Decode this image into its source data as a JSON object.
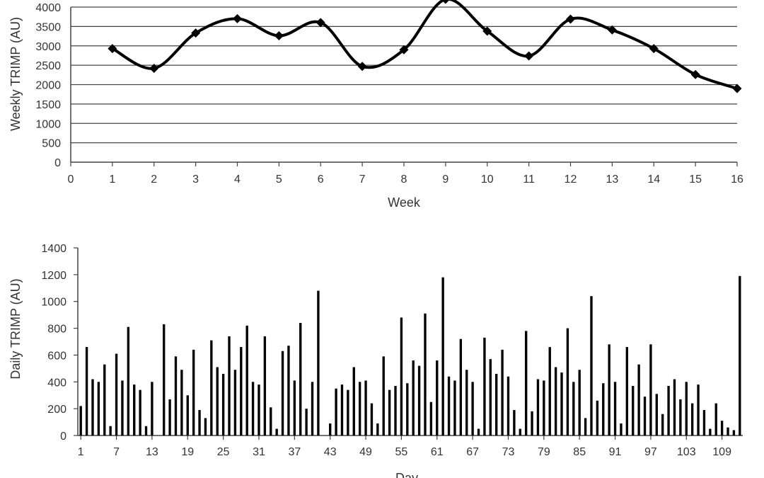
{
  "chart_data": [
    {
      "type": "line",
      "xlabel": "Week",
      "ylabel": "Weekly TRIMP (AU)",
      "xlim": [
        0,
        16
      ],
      "ylim": [
        0,
        4000
      ],
      "x_ticks": [
        "0",
        "1",
        "2",
        "3",
        "4",
        "5",
        "6",
        "7",
        "8",
        "9",
        "10",
        "11",
        "12",
        "13",
        "14",
        "15",
        "16"
      ],
      "y_ticks": [
        "0",
        "500",
        "1000",
        "1500",
        "2000",
        "2500",
        "3000",
        "3500",
        "4000"
      ],
      "grid": "horizontal",
      "marker": "diamond",
      "smooth": true,
      "color": "#000000",
      "x": [
        1,
        2,
        3,
        4,
        5,
        6,
        7,
        8,
        9,
        10,
        11,
        12,
        13,
        14,
        15,
        16
      ],
      "values": [
        2930,
        2420,
        3330,
        3700,
        3260,
        3600,
        2470,
        2900,
        4200,
        3380,
        2740,
        3690,
        3410,
        2930,
        2260,
        1900
      ]
    },
    {
      "type": "bar",
      "xlabel": "Day",
      "ylabel": "Daily TRIMP (AU)",
      "ylim": [
        0,
        1400
      ],
      "y_ticks": [
        "0",
        "200",
        "400",
        "600",
        "800",
        "1000",
        "1200",
        "1400"
      ],
      "x_ticks": [
        "1",
        "7",
        "13",
        "19",
        "25",
        "31",
        "37",
        "43",
        "49",
        "55",
        "61",
        "67",
        "73",
        "79",
        "85",
        "91",
        "97",
        "103",
        "109"
      ],
      "grid": "none",
      "color": "#000000",
      "days": 112,
      "values": [
        220,
        660,
        420,
        400,
        530,
        70,
        610,
        410,
        810,
        380,
        340,
        70,
        400,
        0,
        830,
        270,
        590,
        490,
        300,
        640,
        190,
        130,
        710,
        510,
        460,
        740,
        490,
        660,
        820,
        400,
        380,
        740,
        210,
        50,
        630,
        670,
        410,
        840,
        200,
        400,
        1080,
        0,
        90,
        350,
        380,
        340,
        510,
        400,
        410,
        240,
        90,
        590,
        340,
        370,
        880,
        390,
        560,
        520,
        910,
        250,
        560,
        1180,
        440,
        410,
        720,
        490,
        400,
        50,
        730,
        570,
        460,
        640,
        440,
        190,
        50,
        780,
        180,
        420,
        410,
        660,
        510,
        470,
        800,
        400,
        490,
        130,
        1040,
        260,
        390,
        680,
        400,
        90,
        660,
        370,
        530,
        290,
        680,
        310,
        160,
        370,
        420,
        270,
        400,
        240,
        380,
        190,
        50,
        240,
        110,
        60,
        40,
        1190
      ]
    }
  ]
}
